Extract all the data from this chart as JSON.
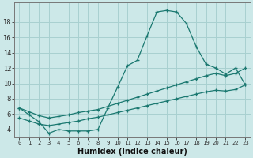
{
  "xlabel": "Humidex (Indice chaleur)",
  "bg_color": "#cce8e8",
  "grid_color": "#a8d0d0",
  "line_color": "#1a7870",
  "xlim": [
    -0.5,
    23.5
  ],
  "ylim": [
    3.0,
    20.5
  ],
  "xtick_labels": [
    "0",
    "1",
    "2",
    "3",
    "4",
    "5",
    "6",
    "7",
    "8",
    "9",
    "10",
    "11",
    "12",
    "13",
    "14",
    "15",
    "16",
    "17",
    "18",
    "19",
    "20",
    "21",
    "22",
    "23"
  ],
  "ytick_values": [
    4,
    6,
    8,
    10,
    12,
    14,
    16,
    18
  ],
  "line1_x": [
    0,
    1,
    2,
    3,
    4,
    5,
    6,
    7,
    8,
    9,
    10,
    11,
    12,
    13,
    14,
    15,
    16,
    17,
    18,
    19,
    20,
    21,
    22,
    23
  ],
  "line1_y": [
    6.8,
    5.9,
    5.0,
    3.5,
    4.0,
    3.8,
    3.8,
    3.8,
    4.0,
    6.8,
    9.5,
    12.3,
    13.0,
    16.2,
    19.3,
    19.5,
    19.3,
    17.8,
    14.8,
    12.5,
    12.0,
    11.2,
    12.0,
    9.8
  ],
  "line2_x": [
    0,
    1,
    2,
    3,
    4,
    5,
    6,
    7,
    8,
    9,
    10,
    11,
    12,
    13,
    14,
    15,
    16,
    17,
    18,
    19,
    20,
    21,
    22,
    23
  ],
  "line2_y": [
    6.8,
    6.3,
    5.8,
    5.5,
    5.7,
    5.9,
    6.2,
    6.4,
    6.6,
    7.0,
    7.4,
    7.8,
    8.2,
    8.6,
    9.0,
    9.4,
    9.8,
    10.2,
    10.6,
    11.0,
    11.3,
    11.0,
    11.3,
    12.0
  ],
  "line3_x": [
    0,
    1,
    2,
    3,
    4,
    5,
    6,
    7,
    8,
    9,
    10,
    11,
    12,
    13,
    14,
    15,
    16,
    17,
    18,
    19,
    20,
    21,
    22,
    23
  ],
  "line3_y": [
    5.5,
    5.1,
    4.7,
    4.5,
    4.7,
    4.9,
    5.1,
    5.4,
    5.6,
    5.9,
    6.2,
    6.5,
    6.8,
    7.1,
    7.4,
    7.7,
    8.0,
    8.3,
    8.6,
    8.9,
    9.1,
    9.0,
    9.2,
    9.8
  ]
}
